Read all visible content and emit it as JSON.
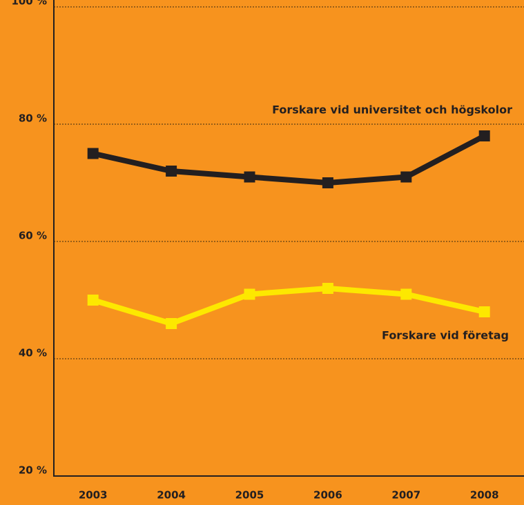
{
  "chart_data": {
    "type": "line",
    "categories": [
      "2003",
      "2004",
      "2005",
      "2006",
      "2007",
      "2008"
    ],
    "series": [
      {
        "name": "Forskare vid universitet och högskolor",
        "color": "#231f20",
        "values": [
          75,
          72,
          71,
          70,
          71,
          78
        ]
      },
      {
        "name": "Forskare vid företag",
        "color": "#fde800",
        "values": [
          50,
          46,
          51,
          52,
          51,
          48
        ]
      }
    ],
    "ylim": [
      20,
      100
    ],
    "yticks": [
      {
        "value": 20,
        "label": "20 %"
      },
      {
        "value": 40,
        "label": "40 %"
      },
      {
        "value": 60,
        "label": "60 %"
      },
      {
        "value": 80,
        "label": "80 %"
      },
      {
        "value": 100,
        "label": "100 %"
      }
    ],
    "grid": true
  }
}
